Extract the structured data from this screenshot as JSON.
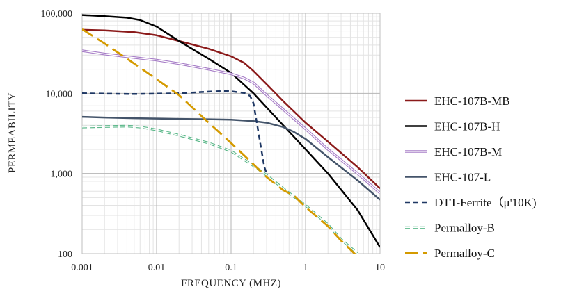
{
  "chart_data": {
    "type": "line",
    "x_scale": "log",
    "y_scale": "log",
    "xlabel": "FREQUENCY (MHZ)",
    "ylabel": "PERMEABILITY",
    "xlim": [
      0.001,
      10
    ],
    "ylim": [
      100,
      100000
    ],
    "x_ticks": [
      "0.001",
      "0.01",
      "0.1",
      "1",
      "10"
    ],
    "y_ticks": [
      "100",
      "1,000",
      "10,000",
      "100,000"
    ],
    "grid": true,
    "legend_position": "right",
    "series": [
      {
        "name": "EHC-107B-MB",
        "color": "#8b1a1a",
        "style": "solid",
        "x": [
          0.001,
          0.002,
          0.005,
          0.01,
          0.02,
          0.05,
          0.1,
          0.15,
          0.2,
          0.3,
          0.5,
          1,
          2,
          5,
          10
        ],
        "y": [
          62000,
          61000,
          58000,
          53000,
          45000,
          36000,
          29000,
          24000,
          19000,
          13000,
          8000,
          4300,
          2500,
          1200,
          650
        ]
      },
      {
        "name": "EHC-107B-H",
        "color": "#000000",
        "style": "solid",
        "x": [
          0.001,
          0.002,
          0.004,
          0.006,
          0.01,
          0.02,
          0.05,
          0.1,
          0.2,
          0.5,
          1,
          2,
          5,
          10
        ],
        "y": [
          95000,
          92000,
          88000,
          82000,
          68000,
          45000,
          27000,
          18000,
          10000,
          4000,
          2000,
          1000,
          350,
          120
        ]
      },
      {
        "name": "EHC-107B-M",
        "color": "#a77ec7",
        "style": "double",
        "x": [
          0.001,
          0.002,
          0.005,
          0.01,
          0.02,
          0.05,
          0.1,
          0.15,
          0.2,
          0.3,
          0.5,
          1,
          2,
          5,
          10
        ],
        "y": [
          34000,
          31000,
          28000,
          26000,
          23500,
          20000,
          17500,
          15500,
          13500,
          9500,
          6300,
          3600,
          2000,
          1000,
          570
        ]
      },
      {
        "name": "EHC-107-L",
        "color": "#44546a",
        "style": "solid",
        "x": [
          0.001,
          0.002,
          0.005,
          0.01,
          0.02,
          0.05,
          0.1,
          0.2,
          0.3,
          0.5,
          0.7,
          1,
          2,
          5,
          10
        ],
        "y": [
          5100,
          5000,
          4900,
          4850,
          4800,
          4750,
          4700,
          4500,
          4300,
          3800,
          3300,
          2700,
          1600,
          820,
          470
        ]
      },
      {
        "name": "DTT-Ferrite（μ'10K)",
        "color": "#1f3864",
        "style": "dashed",
        "x": [
          0.001,
          0.002,
          0.005,
          0.01,
          0.02,
          0.05,
          0.08,
          0.1,
          0.15,
          0.18,
          0.2,
          0.22,
          0.25,
          0.28,
          0.3
        ],
        "y": [
          10000,
          9900,
          9800,
          9900,
          10000,
          10500,
          10700,
          10600,
          10100,
          9300,
          7500,
          4500,
          2200,
          1200,
          1000
        ]
      },
      {
        "name": "Permalloy-B",
        "color": "#5cb88a",
        "style": "double-dashed",
        "x": [
          0.001,
          0.002,
          0.004,
          0.006,
          0.01,
          0.02,
          0.05,
          0.1,
          0.2,
          0.3,
          0.5,
          1,
          2,
          3,
          5
        ],
        "y": [
          3800,
          3850,
          3900,
          3800,
          3500,
          3000,
          2400,
          1900,
          1250,
          950,
          650,
          400,
          230,
          150,
          100
        ]
      },
      {
        "name": "Permalloy-C",
        "color": "#d49a00",
        "style": "long-dash",
        "x": [
          0.001,
          0.002,
          0.005,
          0.01,
          0.02,
          0.05,
          0.1,
          0.2,
          0.3,
          0.5,
          0.7,
          1,
          2,
          3,
          5
        ],
        "y": [
          63000,
          42000,
          23500,
          15000,
          9500,
          4300,
          2400,
          1300,
          900,
          620,
          530,
          380,
          220,
          145,
          92
        ]
      }
    ]
  }
}
